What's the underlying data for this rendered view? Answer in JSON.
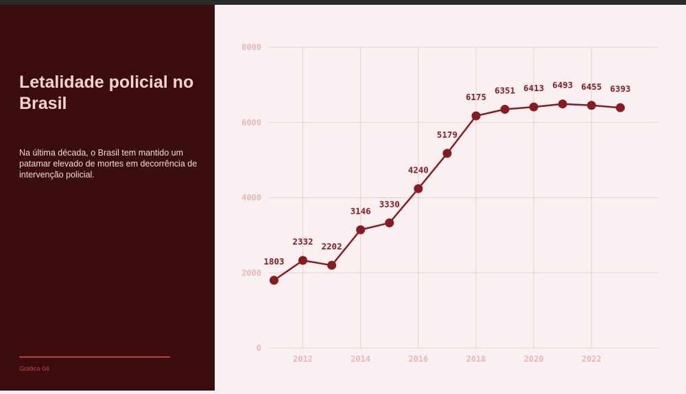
{
  "sidebar": {
    "title": "Letalidade policial no Brasil",
    "description": "Na última década, o Brasil tem mantido um patamar elevado de mortes em decorrência de intervenção policial.",
    "caption": "Gráfico 04"
  },
  "colors": {
    "panel_bg": "#3b0c0e",
    "chart_bg": "#f9f1f1",
    "line": "#8b1a1f",
    "grid": "#efcccc",
    "tick_text": "#eab6b6",
    "title_text": "#f6d2d2",
    "caption_text": "#c0463f"
  },
  "chart_data": {
    "type": "line",
    "x": [
      2011,
      2012,
      2013,
      2014,
      2015,
      2016,
      2017,
      2018,
      2019,
      2020,
      2021,
      2022,
      2023
    ],
    "values": [
      1803,
      2332,
      2202,
      3146,
      3330,
      4240,
      5179,
      6175,
      6351,
      6413,
      6493,
      6455,
      6393
    ],
    "xticks": [
      2012,
      2014,
      2016,
      2018,
      2020,
      2022
    ],
    "yticks": [
      0,
      2000,
      4000,
      6000,
      8000
    ],
    "xlim": [
      2010.8,
      2024.3
    ],
    "ylim": [
      0,
      8000
    ],
    "grid": true,
    "data_labels": true,
    "title": "",
    "xlabel": "",
    "ylabel": ""
  }
}
